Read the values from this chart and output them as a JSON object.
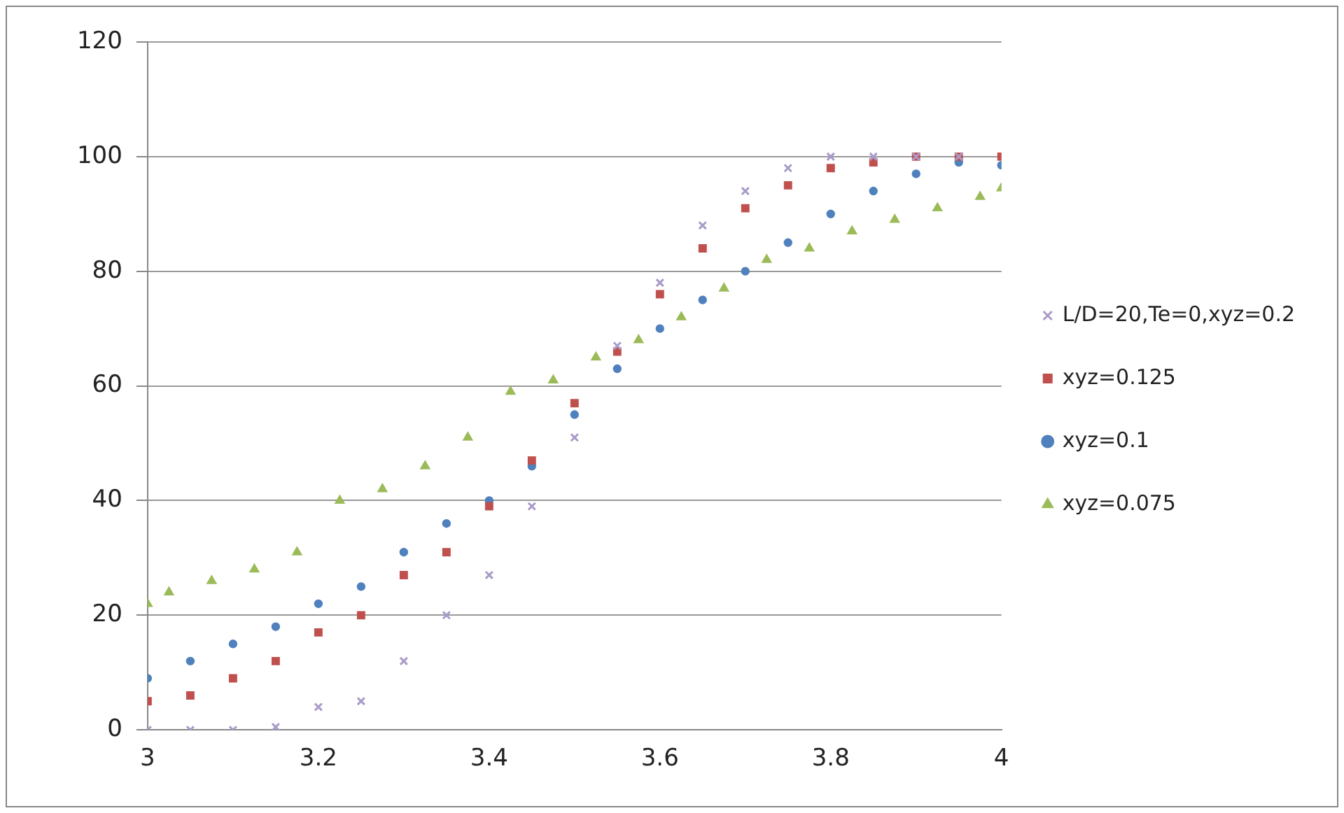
{
  "chart_data": {
    "type": "scatter",
    "x": [
      3.0,
      3.05,
      3.1,
      3.15,
      3.2,
      3.25,
      3.3,
      3.35,
      3.4,
      3.45,
      3.5,
      3.55,
      3.6,
      3.65,
      3.7,
      3.75,
      3.8,
      3.85,
      3.9,
      3.95,
      4.0
    ],
    "series": [
      {
        "name": "L/D=20,Te=0,xyz=0.2",
        "color": "#a99bc9",
        "marker": "cross",
        "values": [
          0,
          0,
          0,
          0.5,
          4,
          5,
          12,
          20,
          27,
          39,
          51,
          67,
          78,
          88,
          94,
          98,
          100,
          100,
          100,
          100,
          null
        ]
      },
      {
        "name": "xyz=0.125",
        "color": "#c0504d",
        "marker": "square",
        "values": [
          5,
          6,
          9,
          12,
          17,
          20,
          27,
          31,
          39,
          47,
          57,
          66,
          76,
          84,
          91,
          95,
          98,
          99,
          100,
          100,
          100
        ]
      },
      {
        "name": "xyz=0.1",
        "color": "#4f81bd",
        "marker": "circle",
        "values": [
          9,
          12,
          15,
          18,
          22,
          25,
          31,
          36,
          40,
          46,
          55,
          63,
          70,
          75,
          80,
          85,
          90,
          94,
          97,
          99,
          98.5
        ]
      },
      {
        "name": "xyz=0.075",
        "color": "#9bbb59",
        "marker": "triangle",
        "x": [
          3.0,
          3.025,
          3.075,
          3.125,
          3.175,
          3.225,
          3.275,
          3.325,
          3.375,
          3.425,
          3.475,
          3.525,
          3.575,
          3.625,
          3.675,
          3.725,
          3.775,
          3.825,
          3.875,
          3.925,
          3.975,
          4.0
        ],
        "values": [
          22,
          24,
          26,
          28,
          31,
          40,
          42,
          46,
          51,
          59,
          61,
          65,
          68,
          72,
          77,
          82,
          84,
          87,
          89,
          91,
          93,
          94.5
        ]
      }
    ],
    "xlim": [
      3,
      4
    ],
    "xticks": [
      3,
      3.2,
      3.4,
      3.6,
      3.8,
      4
    ],
    "ylim": [
      0,
      120
    ],
    "yticks": [
      0,
      20,
      40,
      60,
      80,
      100,
      120
    ],
    "grid": "y",
    "legend": "right"
  }
}
